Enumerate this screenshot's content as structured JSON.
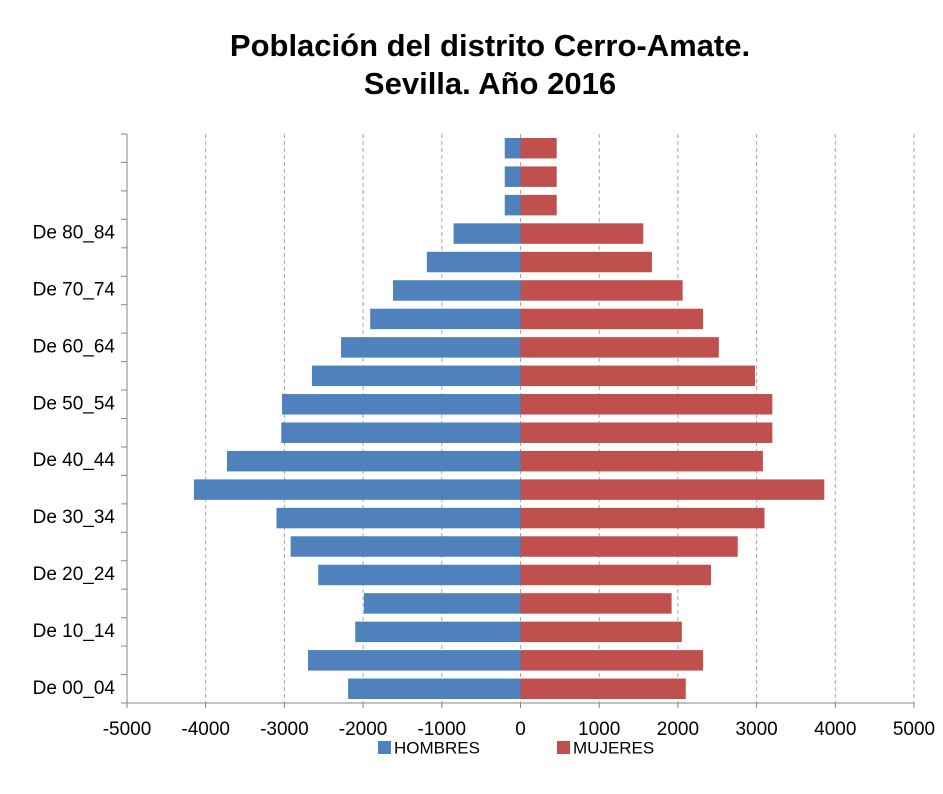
{
  "chart_data": {
    "type": "bar",
    "orientation": "horizontal",
    "title": [
      "Población del distrito Cerro-Amate.",
      "Sevilla. Año 2016"
    ],
    "categories": [
      "De 00_04",
      null,
      "De 10_14",
      null,
      "De 20_24",
      null,
      "De 30_34",
      null,
      "De 40_44",
      null,
      "De 50_54",
      null,
      "De 60_64",
      null,
      "De 70_74",
      null,
      "De 80_84",
      null,
      null,
      null
    ],
    "series": [
      {
        "name": "HOMBRES",
        "color": "#4f81bd",
        "values": [
          -2190,
          -2700,
          -2100,
          -1990,
          -2570,
          -2920,
          -3100,
          -4150,
          -3730,
          -3040,
          -3030,
          -2650,
          -2280,
          -1910,
          -1620,
          -1190,
          -850,
          -200,
          -200,
          -200
        ]
      },
      {
        "name": "MUJERES",
        "color": "#c0504d",
        "values": [
          2100,
          2320,
          2050,
          1920,
          2420,
          2760,
          3100,
          3860,
          3080,
          3200,
          3200,
          2980,
          2520,
          2320,
          2060,
          1670,
          1560,
          460,
          460,
          460
        ]
      }
    ],
    "xlim": [
      -5000,
      5000
    ],
    "xticks": [
      -5000,
      -4000,
      -3000,
      -2000,
      -1000,
      0,
      1000,
      2000,
      3000,
      4000,
      5000
    ],
    "grid": true,
    "legend": "bottom"
  }
}
